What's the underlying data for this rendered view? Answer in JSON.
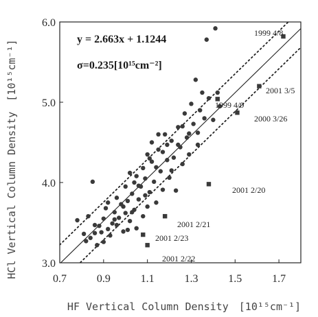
{
  "chart_data": {
    "type": "scatter",
    "xlabel": "HF Vertical Column Density",
    "xunit": "[10¹⁵cm⁻¹]",
    "ylabel": "HCl Vertical Column Density",
    "yunit": "[10¹⁵cm⁻¹]",
    "xlim": [
      0.7,
      1.8
    ],
    "ylim": [
      3.0,
      6.0
    ],
    "xticks": [
      "0.7",
      "0.9",
      "1.1",
      "1.3",
      "1.5",
      "1.7"
    ],
    "yticks": [
      "3.0",
      "4.0",
      "5.0",
      "6.0"
    ],
    "equation": "y = 2.663x + 1.1244",
    "sigma": "σ=0.235[10¹⁵cm⁻²]",
    "fit": {
      "slope": 2.663,
      "intercept": 1.1244,
      "sigma": 0.235
    },
    "points": [
      [
        0.78,
        3.53
      ],
      [
        0.81,
        3.36
      ],
      [
        0.82,
        3.27
      ],
      [
        0.83,
        3.58
      ],
      [
        0.84,
        3.31
      ],
      [
        0.85,
        4.01
      ],
      [
        0.86,
        3.37
      ],
      [
        0.86,
        3.47
      ],
      [
        0.87,
        3.22
      ],
      [
        0.88,
        3.46
      ],
      [
        0.89,
        3.38
      ],
      [
        0.9,
        3.26
      ],
      [
        0.9,
        3.55
      ],
      [
        0.91,
        3.68
      ],
      [
        0.92,
        3.42
      ],
      [
        0.93,
        3.34
      ],
      [
        0.94,
        3.49
      ],
      [
        0.95,
        3.63
      ],
      [
        0.96,
        3.47
      ],
      [
        0.96,
        3.81
      ],
      [
        0.97,
        3.56
      ],
      [
        0.98,
        3.73
      ],
      [
        0.99,
        3.39
      ],
      [
        1.0,
        3.62
      ],
      [
        1.0,
        3.95
      ],
      [
        1.01,
        3.77
      ],
      [
        1.02,
        3.52
      ],
      [
        1.02,
        4.12
      ],
      [
        1.03,
        3.86
      ],
      [
        1.04,
        3.66
      ],
      [
        1.05,
        3.43
      ],
      [
        1.05,
        4.08
      ],
      [
        1.06,
        3.79
      ],
      [
        1.07,
        3.95
      ],
      [
        1.08,
        4.18
      ],
      [
        1.08,
        3.58
      ],
      [
        1.09,
        4.05
      ],
      [
        1.1,
        3.7
      ],
      [
        1.1,
        4.35
      ],
      [
        1.11,
        3.88
      ],
      [
        1.12,
        4.26
      ],
      [
        1.12,
        4.5
      ],
      [
        1.13,
        4.01
      ],
      [
        1.14,
        3.75
      ],
      [
        1.15,
        4.41
      ],
      [
        1.16,
        4.14
      ],
      [
        1.17,
        3.91
      ],
      [
        1.18,
        4.6
      ],
      [
        1.19,
        4.28
      ],
      [
        1.2,
        4.06
      ],
      [
        1.21,
        4.52
      ],
      [
        1.22,
        4.31
      ],
      [
        1.23,
        3.9
      ],
      [
        1.24,
        4.69
      ],
      [
        1.25,
        4.44
      ],
      [
        1.26,
        4.23
      ],
      [
        1.27,
        4.86
      ],
      [
        1.28,
        4.56
      ],
      [
        1.29,
        4.35
      ],
      [
        1.3,
        4.98
      ],
      [
        1.31,
        4.73
      ],
      [
        1.32,
        5.28
      ],
      [
        1.33,
        4.62
      ],
      [
        1.34,
        4.9
      ],
      [
        1.35,
        5.12
      ],
      [
        1.36,
        4.8
      ],
      [
        1.37,
        5.78
      ],
      [
        1.38,
        5.05
      ],
      [
        1.4,
        4.78
      ],
      [
        1.41,
        5.92
      ],
      [
        1.42,
        5.12
      ],
      [
        1.43,
        4.95
      ],
      [
        0.99,
        3.7
      ],
      [
        1.03,
        3.63
      ],
      [
        1.06,
        3.96
      ],
      [
        1.09,
        3.84
      ],
      [
        1.14,
        4.19
      ],
      [
        1.17,
        4.38
      ],
      [
        1.21,
        4.15
      ],
      [
        1.24,
        4.47
      ],
      [
        0.92,
        3.75
      ],
      [
        0.95,
        3.54
      ],
      [
        1.01,
        3.41
      ],
      [
        1.04,
        4.0
      ],
      [
        1.11,
        4.3
      ],
      [
        1.15,
        4.6
      ],
      [
        1.19,
        4.47
      ],
      [
        1.26,
        4.7
      ],
      [
        1.29,
        4.61
      ],
      [
        1.33,
        4.47
      ]
    ],
    "annotations": [
      {
        "text": "1999 4/8",
        "x": 1.72,
        "y": 5.82
      },
      {
        "text": "2001 3/5",
        "x": 1.61,
        "y": 5.2
      },
      {
        "text": "1999 4/9",
        "x": 1.42,
        "y": 5.04
      },
      {
        "text": "2000 3/26",
        "x": 1.51,
        "y": 4.87
      },
      {
        "text": "2001 2/20",
        "x": 1.38,
        "y": 3.98
      },
      {
        "text": "2001 2/21",
        "x": 1.18,
        "y": 3.58
      },
      {
        "text": "2001 2/23",
        "x": 1.08,
        "y": 3.35
      },
      {
        "text": "2001 2/22",
        "x": 1.1,
        "y": 3.22
      }
    ]
  }
}
